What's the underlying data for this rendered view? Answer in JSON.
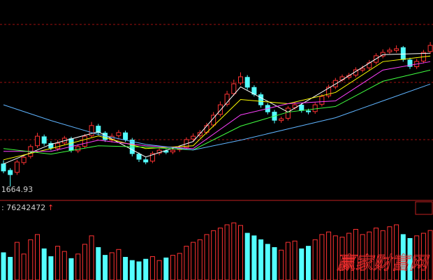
{
  "chart_data": {
    "type": "candlestick",
    "up_color": "#ff3232",
    "down_color": "#54ffff",
    "ylim": [
      1620,
      2330
    ],
    "volume_ylim": [
      0,
      100000000
    ],
    "low_label_index": 1,
    "open": [
      1745,
      1722,
      1715,
      1750,
      1772,
      1810,
      1842,
      1818,
      1800,
      1820,
      1835,
      1792,
      1808,
      1846,
      1880,
      1855,
      1830,
      1846,
      1856,
      1830,
      1780,
      1760,
      1755,
      1784,
      1792,
      1788,
      1796,
      1804,
      1834,
      1846,
      1858,
      1884,
      1922,
      1958,
      1996,
      2034,
      2054,
      2018,
      1992,
      1954,
      1930,
      1900,
      1908,
      1946,
      1955,
      1934,
      1932,
      1958,
      1988,
      2020,
      2045,
      2054,
      2062,
      2080,
      2088,
      2108,
      2130,
      2145,
      2150,
      2160,
      2116,
      2092,
      2112,
      2146
    ],
    "high": [
      1758,
      1730,
      1760,
      1778,
      1815,
      1856,
      1850,
      1826,
      1830,
      1845,
      1842,
      1815,
      1852,
      1895,
      1888,
      1862,
      1854,
      1866,
      1864,
      1838,
      1786,
      1768,
      1790,
      1800,
      1798,
      1802,
      1810,
      1840,
      1854,
      1866,
      1892,
      1930,
      1968,
      2006,
      2046,
      2072,
      2062,
      2026,
      2000,
      1962,
      1938,
      1914,
      1952,
      1966,
      1962,
      1942,
      1964,
      1994,
      2028,
      2052,
      2064,
      2070,
      2090,
      2096,
      2116,
      2140,
      2154,
      2160,
      2168,
      2166,
      2124,
      2120,
      2152,
      2180
    ],
    "low": [
      1712,
      1664.93,
      1706,
      1742,
      1764,
      1802,
      1810,
      1794,
      1792,
      1812,
      1786,
      1784,
      1800,
      1838,
      1848,
      1824,
      1822,
      1838,
      1824,
      1772,
      1752,
      1744,
      1748,
      1776,
      1780,
      1780,
      1788,
      1796,
      1826,
      1838,
      1850,
      1876,
      1914,
      1950,
      1988,
      2026,
      2010,
      1986,
      1946,
      1922,
      1890,
      1892,
      1900,
      1938,
      1928,
      1922,
      1924,
      1950,
      1980,
      2012,
      2038,
      2046,
      2054,
      2072,
      2080,
      2100,
      2122,
      2138,
      2142,
      2110,
      2084,
      2084,
      2104,
      2138
    ],
    "close": [
      1720,
      1707,
      1752,
      1769,
      1807,
      1844,
      1819,
      1802,
      1819,
      1837,
      1794,
      1807,
      1844,
      1882,
      1857,
      1832,
      1844,
      1857,
      1832,
      1782,
      1762,
      1752,
      1782,
      1794,
      1787,
      1794,
      1802,
      1832,
      1844,
      1857,
      1882,
      1919,
      1956,
      1994,
      2031,
      2056,
      2019,
      1994,
      1956,
      1931,
      1901,
      1906,
      1944,
      1956,
      1936,
      1931,
      1956,
      1986,
      2019,
      2043,
      2056,
      2061,
      2081,
      2086,
      2106,
      2131,
      2143,
      2151,
      2156,
      2118,
      2093,
      2111,
      2143,
      2168
    ],
    "volume": [
      42000000,
      35000000,
      58000000,
      40000000,
      62000000,
      70000000,
      48000000,
      36000000,
      52000000,
      44000000,
      33000000,
      40000000,
      55000000,
      68000000,
      50000000,
      38000000,
      42000000,
      47000000,
      35000000,
      30000000,
      28000000,
      32000000,
      36000000,
      30000000,
      34000000,
      38000000,
      41000000,
      52000000,
      58000000,
      62000000,
      70000000,
      76000000,
      80000000,
      85000000,
      88000000,
      84000000,
      72000000,
      68000000,
      62000000,
      55000000,
      50000000,
      46000000,
      58000000,
      60000000,
      48000000,
      52000000,
      62000000,
      70000000,
      74000000,
      68000000,
      66000000,
      72000000,
      78000000,
      70000000,
      74000000,
      80000000,
      76000000,
      82000000,
      85000000,
      70000000,
      64000000,
      68000000,
      72000000,
      76242472
    ],
    "series": [
      {
        "color": "#ffffff",
        "x": [
          0,
          7,
          14,
          21,
          28,
          35,
          42,
          49,
          56,
          63
        ],
        "values": [
          1745,
          1815,
          1860,
          1770,
          1825,
          2020,
          1930,
          2030,
          2135,
          2140
        ]
      },
      {
        "color": "#ffff00",
        "x": [
          0,
          7,
          14,
          21,
          28,
          35,
          42,
          49,
          56,
          63
        ],
        "values": [
          1760,
          1800,
          1845,
          1800,
          1810,
          1975,
          1960,
          2000,
          2110,
          2130
        ]
      },
      {
        "color": "#ff40ff",
        "x": [
          0,
          7,
          14,
          21,
          28,
          35,
          42,
          49,
          56,
          63
        ],
        "values": [
          1790,
          1790,
          1830,
          1810,
          1800,
          1920,
          1960,
          1970,
          2080,
          2110
        ]
      },
      {
        "color": "#40ff40",
        "x": [
          0,
          7,
          14,
          21,
          28,
          35,
          42,
          49,
          56,
          63
        ],
        "values": [
          1800,
          1780,
          1810,
          1805,
          1795,
          1880,
          1930,
          1950,
          2040,
          2080
        ]
      },
      {
        "color": "#5fb4ff",
        "x": [
          0,
          7,
          14,
          21,
          28,
          35,
          42,
          49,
          56,
          63
        ],
        "values": [
          1956,
          1900,
          1850,
          1815,
          1795,
          1830,
          1870,
          1910,
          1970,
          2030
        ]
      }
    ],
    "volume_readout": ": 76242472",
    "volume_arrow": "↑",
    "watermark": "赢家财富网"
  }
}
